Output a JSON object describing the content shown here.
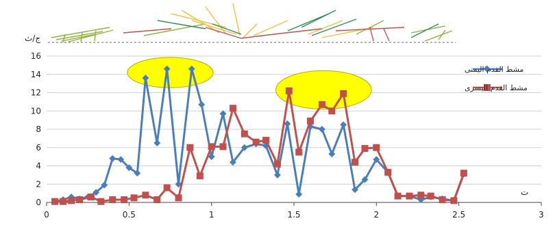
{
  "chart_data": {
    "type": "line",
    "title": "",
    "xlabel": "ت",
    "ylabel": "ج/ث",
    "xlim": [
      0,
      3
    ],
    "ylim": [
      0,
      16
    ],
    "x_ticks": [
      "0",
      "0.5",
      "1",
      "1.5",
      "2",
      "2.5",
      "3"
    ],
    "y_ticks": [
      "0",
      "2",
      "4",
      "6",
      "8",
      "10",
      "12",
      "14",
      "16"
    ],
    "grid": true,
    "legend_position": "top-right",
    "series": [
      {
        "name": "مشط القدم اليمنى",
        "color": "#4a7ebb",
        "marker": "diamond",
        "points": [
          [
            0.05,
            0.1
          ],
          [
            0.1,
            0.3
          ],
          [
            0.15,
            0.6
          ],
          [
            0.2,
            0.4
          ],
          [
            0.25,
            0.6
          ],
          [
            0.3,
            1.1
          ],
          [
            0.35,
            1.9
          ],
          [
            0.4,
            4.8
          ],
          [
            0.45,
            4.7
          ],
          [
            0.5,
            3.8
          ],
          [
            0.55,
            3.2
          ],
          [
            0.6,
            13.6
          ],
          [
            0.67,
            6.5
          ],
          [
            0.73,
            14.6
          ],
          [
            0.8,
            2.0
          ],
          [
            0.88,
            14.6
          ],
          [
            0.94,
            10.7
          ],
          [
            1.0,
            5.0
          ],
          [
            1.07,
            9.7
          ],
          [
            1.13,
            4.4
          ],
          [
            1.2,
            6.0
          ],
          [
            1.27,
            6.4
          ],
          [
            1.33,
            6.2
          ],
          [
            1.4,
            3.0
          ],
          [
            1.46,
            8.6
          ],
          [
            1.53,
            0.9
          ],
          [
            1.6,
            8.3
          ],
          [
            1.67,
            8.0
          ],
          [
            1.73,
            5.3
          ],
          [
            1.8,
            8.5
          ],
          [
            1.87,
            1.4
          ],
          [
            1.93,
            2.5
          ],
          [
            2.0,
            4.7
          ],
          [
            2.07,
            3.3
          ],
          [
            2.13,
            0.7
          ],
          [
            2.2,
            0.7
          ],
          [
            2.27,
            0.3
          ],
          [
            2.33,
            0.6
          ],
          [
            2.4,
            0.4
          ],
          [
            2.47,
            0.2
          ],
          [
            2.53,
            3.1
          ]
        ]
      },
      {
        "name": "مشط القدم اليسرى",
        "color": "#c0504d",
        "marker": "square",
        "points": [
          [
            0.05,
            0.1
          ],
          [
            0.1,
            0.1
          ],
          [
            0.15,
            0.2
          ],
          [
            0.2,
            0.3
          ],
          [
            0.27,
            0.6
          ],
          [
            0.33,
            0.1
          ],
          [
            0.4,
            0.3
          ],
          [
            0.47,
            0.3
          ],
          [
            0.53,
            0.5
          ],
          [
            0.6,
            0.8
          ],
          [
            0.67,
            0.3
          ],
          [
            0.73,
            1.6
          ],
          [
            0.8,
            0.5
          ],
          [
            0.87,
            6.0
          ],
          [
            0.93,
            2.9
          ],
          [
            1.0,
            6.1
          ],
          [
            1.07,
            6.1
          ],
          [
            1.13,
            10.3
          ],
          [
            1.2,
            7.5
          ],
          [
            1.27,
            6.6
          ],
          [
            1.33,
            6.8
          ],
          [
            1.4,
            4.2
          ],
          [
            1.47,
            12.2
          ],
          [
            1.53,
            5.5
          ],
          [
            1.6,
            8.9
          ],
          [
            1.67,
            10.7
          ],
          [
            1.73,
            10.0
          ],
          [
            1.8,
            11.9
          ],
          [
            1.87,
            4.4
          ],
          [
            1.93,
            5.9
          ],
          [
            2.0,
            6.0
          ],
          [
            2.07,
            3.3
          ],
          [
            2.13,
            0.7
          ],
          [
            2.2,
            0.7
          ],
          [
            2.27,
            0.8
          ],
          [
            2.33,
            0.7
          ],
          [
            2.4,
            0.3
          ],
          [
            2.47,
            0.2
          ],
          [
            2.53,
            3.2
          ]
        ]
      }
    ],
    "annotations": [
      {
        "shape": "ellipse",
        "fill": "#ffff00",
        "cx": 0.75,
        "cy": 14.2,
        "rx": 0.26,
        "ry": 1.65
      },
      {
        "shape": "ellipse",
        "fill": "#ffff00",
        "cx": 1.68,
        "cy": 12.3,
        "rx": 0.29,
        "ry": 2.1
      }
    ],
    "figure_colors": [
      "#8db33a",
      "#e8c33a",
      "#c0504d",
      "#2e8b57"
    ]
  }
}
